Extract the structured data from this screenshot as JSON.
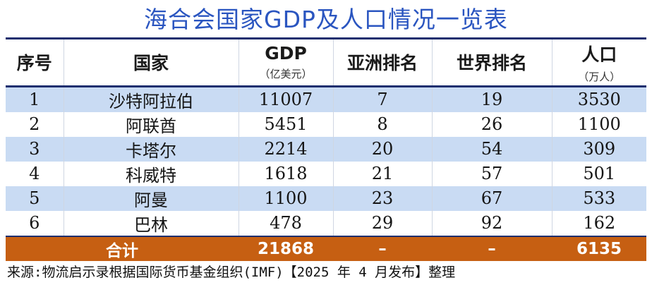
{
  "title": "海合会国家GDP及人口情况一览表",
  "headers": {
    "index": "序号",
    "country": "国家",
    "gdp": "GDP",
    "gdp_unit": "（亿美元）",
    "asia_rank": "亚洲排名",
    "world_rank": "世界排名",
    "population": "人口",
    "population_unit": "（万人）"
  },
  "rows": [
    {
      "index": "1",
      "country": "沙特阿拉伯",
      "gdp": "11007",
      "asia_rank": "7",
      "world_rank": "19",
      "population": "3530"
    },
    {
      "index": "2",
      "country": "阿联酋",
      "gdp": "5451",
      "asia_rank": "8",
      "world_rank": "26",
      "population": "1100"
    },
    {
      "index": "3",
      "country": "卡塔尔",
      "gdp": "2214",
      "asia_rank": "20",
      "world_rank": "54",
      "population": "309"
    },
    {
      "index": "4",
      "country": "科威特",
      "gdp": "1618",
      "asia_rank": "21",
      "world_rank": "57",
      "population": "501"
    },
    {
      "index": "5",
      "country": "阿曼",
      "gdp": "1100",
      "asia_rank": "23",
      "world_rank": "67",
      "population": "533"
    },
    {
      "index": "6",
      "country": "巴林",
      "gdp": "478",
      "asia_rank": "29",
      "world_rank": "92",
      "population": "162"
    }
  ],
  "total": {
    "label": "合计",
    "gdp": "21868",
    "asia_rank": "–",
    "world_rank": "–",
    "population": "6135"
  },
  "source": "来源:物流启示录根据国际货币基金组织(IMF)【2025 年 4 月发布】整理",
  "colors": {
    "title": "#2a55c0",
    "rule": "#1d2f6f",
    "row_band": "#c9dbf3",
    "total_bg": "#c65f12"
  }
}
